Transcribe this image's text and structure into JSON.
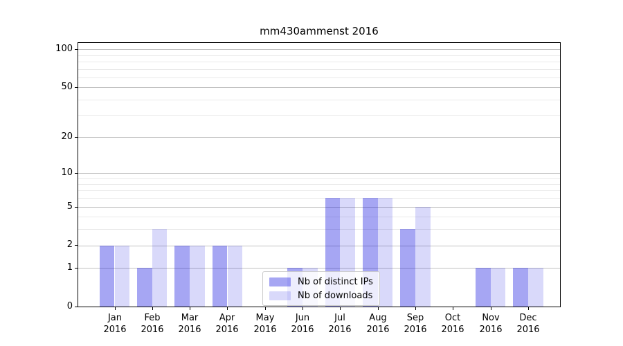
{
  "chart_data": {
    "type": "bar",
    "title": "mm430ammenst 2016",
    "categories": [
      "Jan 2016",
      "Feb 2016",
      "Mar 2016",
      "Apr 2016",
      "May 2016",
      "Jun 2016",
      "Jul 2016",
      "Aug 2016",
      "Sep 2016",
      "Oct 2016",
      "Nov 2016",
      "Dec 2016"
    ],
    "series": [
      {
        "name": "Nb of distinct IPs",
        "color": "#0000dc59",
        "values": [
          2,
          1,
          2,
          2,
          0,
          1,
          6,
          6,
          3,
          0,
          1,
          1
        ]
      },
      {
        "name": "Nb of downloads",
        "color": "#0000dc26",
        "values": [
          2,
          3,
          2,
          2,
          0,
          1,
          6,
          6,
          5,
          0,
          1,
          1
        ]
      }
    ],
    "xlabel": "",
    "ylabel": "",
    "yscale": "log1p",
    "ylim": [
      0,
      112
    ],
    "yticks": [
      0,
      1,
      2,
      5,
      10,
      20,
      50,
      100
    ],
    "minor_yticks": [
      3,
      4,
      6,
      7,
      8,
      9,
      30,
      40,
      60,
      70,
      80,
      90
    ],
    "grid": "both",
    "legend_position": "lower-center",
    "colors": {
      "major_grid": "#c0c0c0",
      "minor_grid": "#e9e9e9",
      "axis": "#000000",
      "background": "#ffffff"
    }
  }
}
